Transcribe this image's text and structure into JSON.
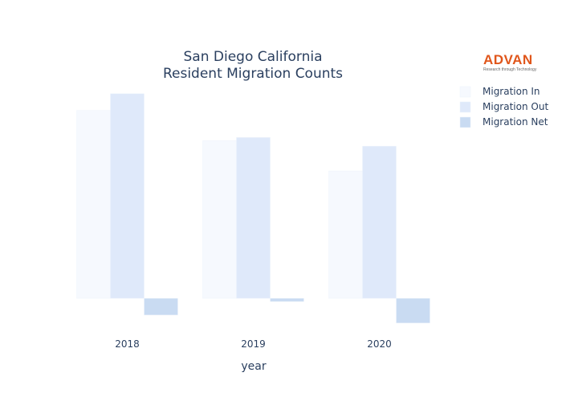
{
  "logo": {
    "word": "ADVAN",
    "tagline": "Research through Technology"
  },
  "chart_data": {
    "type": "bar",
    "title": [
      "San Diego California",
      "Resident Migration Counts"
    ],
    "xlabel": "year",
    "ylabel": "",
    "categories": [
      "2018",
      "2019",
      "2020"
    ],
    "series": [
      {
        "name": "Migration In",
        "color": "#f6f9fe",
        "values": [
          236,
          198,
          160
        ]
      },
      {
        "name": "Migration Out",
        "color": "#dfe9fa",
        "values": [
          257,
          202,
          191
        ]
      },
      {
        "name": "Migration Net",
        "color": "#c9dbf2",
        "values": [
          -21,
          -4,
          -31
        ]
      }
    ],
    "ylim": [
      -40,
      265
    ],
    "grid": false,
    "legend": "top-right"
  }
}
